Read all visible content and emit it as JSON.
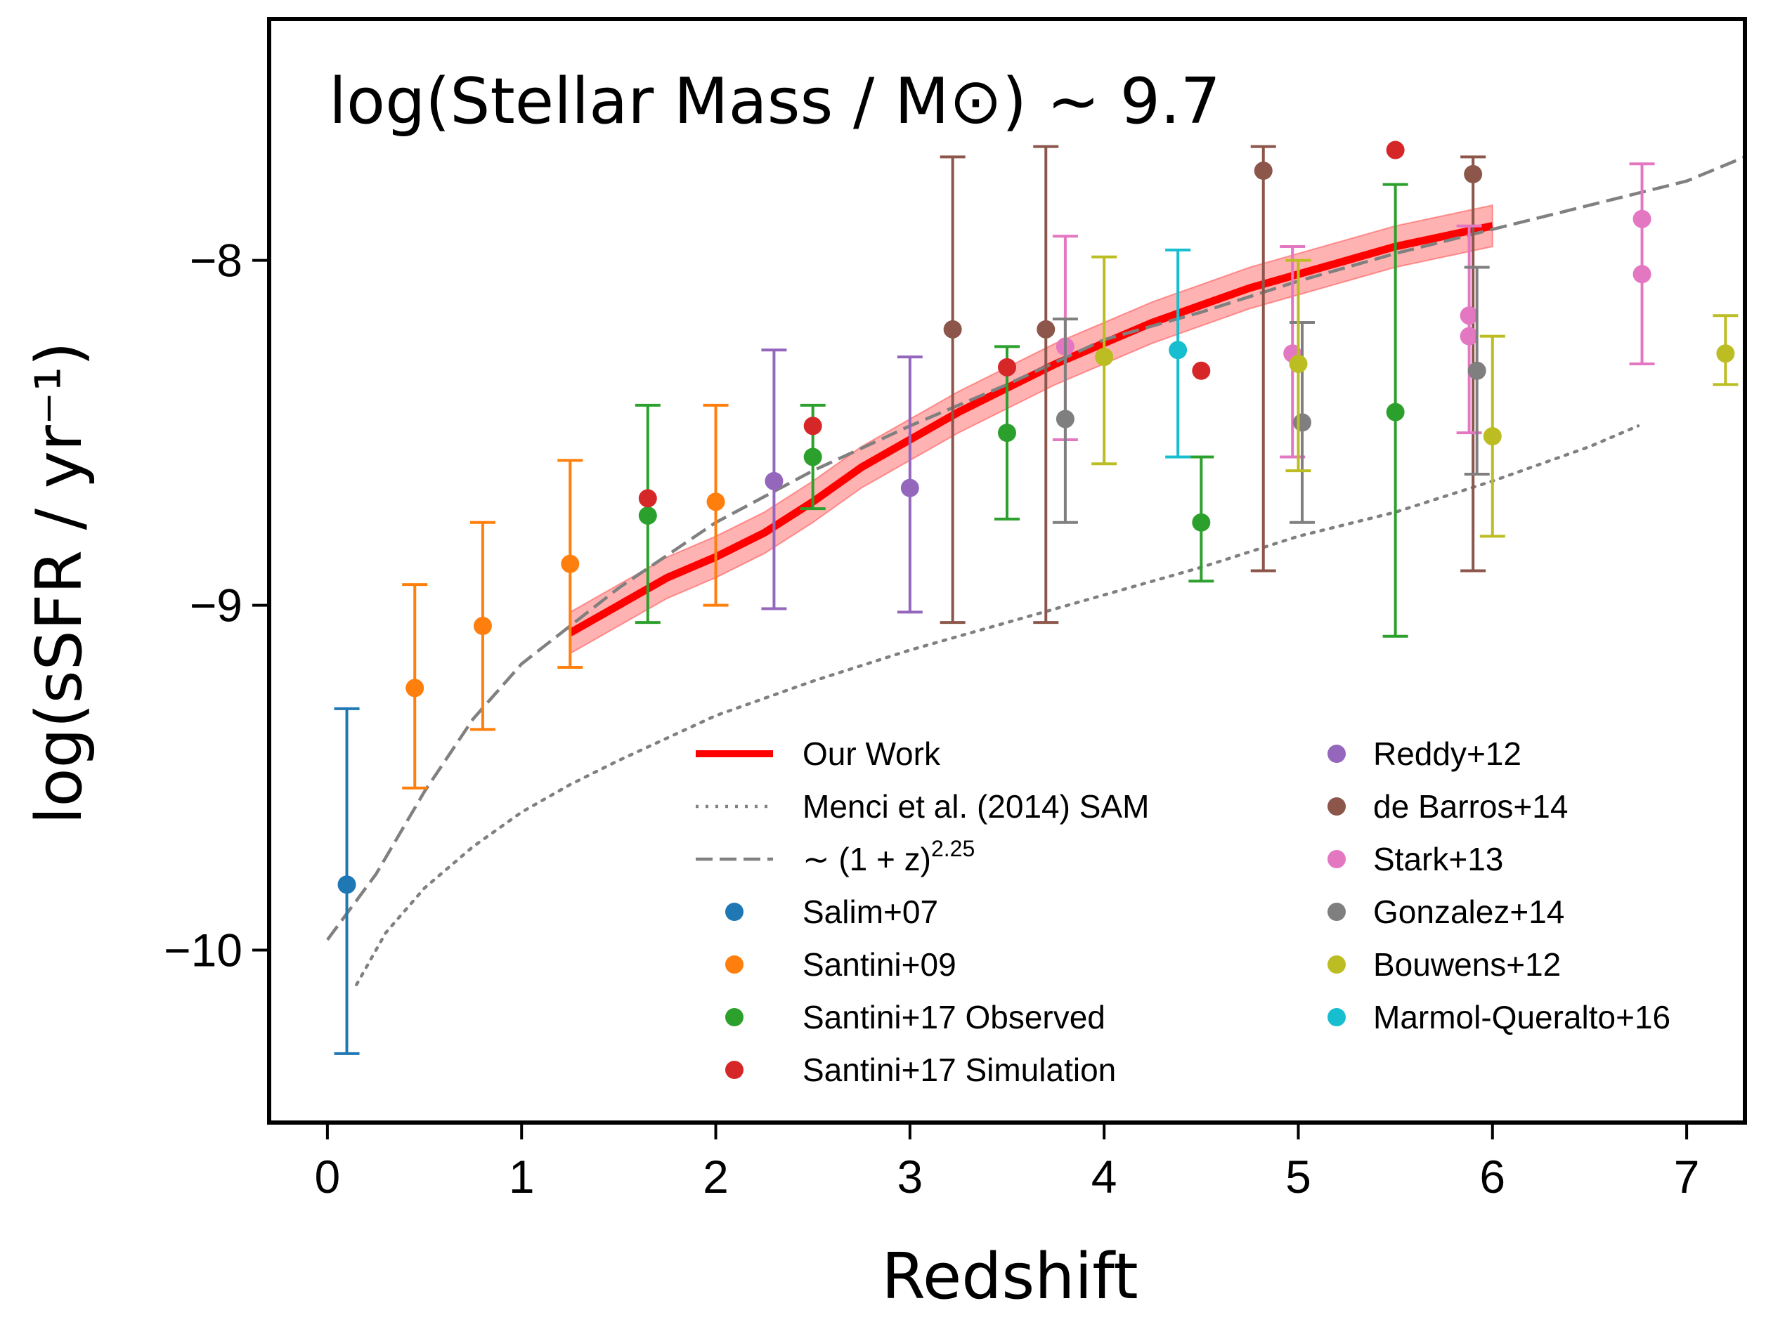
{
  "chart_data": {
    "type": "scatter",
    "title": "log(Stellar Mass / M⊙) ~ 9.7",
    "xlabel": "Redshift",
    "ylabel": "log(sSFR / yr⁻¹)",
    "xlim": [
      -0.3,
      7.3
    ],
    "ylim": [
      -10.5,
      -7.3
    ],
    "x_ticks": [
      0,
      1,
      2,
      3,
      4,
      5,
      6,
      7
    ],
    "x_tick_labels": [
      "0",
      "1",
      "2",
      "3",
      "4",
      "5",
      "6",
      "7"
    ],
    "y_ticks": [
      -8,
      -9,
      -10
    ],
    "y_tick_labels": [
      "−8",
      "−9",
      "−10"
    ],
    "grid": false,
    "legend_position": "lower-right",
    "lines": [
      {
        "name": "Our Work",
        "color": "#ff0000",
        "style": "solid",
        "x": [
          1.25,
          1.5,
          1.75,
          2.0,
          2.25,
          2.5,
          2.75,
          3.0,
          3.25,
          3.5,
          3.75,
          4.0,
          4.25,
          4.5,
          4.75,
          5.0,
          5.25,
          5.5,
          5.75,
          6.0
        ],
        "y": [
          -9.08,
          -9.0,
          -8.92,
          -8.86,
          -8.79,
          -8.7,
          -8.6,
          -8.52,
          -8.44,
          -8.37,
          -8.3,
          -8.24,
          -8.18,
          -8.13,
          -8.08,
          -8.04,
          -8.0,
          -7.96,
          -7.93,
          -7.9
        ],
        "band": 0.06
      },
      {
        "name": "Menci et al. (2014) SAM",
        "color": "#808080",
        "style": "dotted",
        "x": [
          0.15,
          0.3,
          0.5,
          0.75,
          1.0,
          1.25,
          1.5,
          2.0,
          2.5,
          3.0,
          3.5,
          4.0,
          4.5,
          5.0,
          5.5,
          6.0,
          6.5,
          6.75
        ],
        "y": [
          -10.1,
          -9.95,
          -9.82,
          -9.7,
          -9.6,
          -9.52,
          -9.45,
          -9.32,
          -9.22,
          -9.13,
          -9.05,
          -8.97,
          -8.89,
          -8.8,
          -8.73,
          -8.64,
          -8.54,
          -8.48
        ]
      },
      {
        "name": "∼ (1 + z)^2.25",
        "color": "#808080",
        "style": "dashed",
        "x": [
          0.0,
          0.25,
          0.5,
          0.75,
          1.0,
          1.25,
          1.5,
          2.0,
          2.5,
          3.0,
          3.5,
          4.0,
          4.5,
          5.0,
          5.5,
          6.0,
          6.5,
          7.0,
          7.3
        ],
        "y": [
          -9.97,
          -9.78,
          -9.54,
          -9.33,
          -9.17,
          -9.06,
          -8.95,
          -8.76,
          -8.61,
          -8.48,
          -8.36,
          -8.23,
          -8.15,
          -8.06,
          -7.98,
          -7.91,
          -7.84,
          -7.77,
          -7.7
        ]
      }
    ],
    "series": [
      {
        "name": "Salim+07",
        "color": "#1f77b4",
        "points": [
          {
            "x": 0.1,
            "y": -9.81,
            "ylo": -10.3,
            "yhi": -9.3
          }
        ]
      },
      {
        "name": "Santini+09",
        "color": "#ff7f0e",
        "points": [
          {
            "x": 0.45,
            "y": -9.24,
            "ylo": -9.53,
            "yhi": -8.94
          },
          {
            "x": 0.8,
            "y": -9.06,
            "ylo": -9.36,
            "yhi": -8.76
          },
          {
            "x": 1.25,
            "y": -8.88,
            "ylo": -9.18,
            "yhi": -8.58
          },
          {
            "x": 2.0,
            "y": -8.7,
            "ylo": -9.0,
            "yhi": -8.42
          }
        ]
      },
      {
        "name": "Santini+17 Observed",
        "color": "#2ca02c",
        "points": [
          {
            "x": 1.65,
            "y": -8.74,
            "ylo": -9.05,
            "yhi": -8.42
          },
          {
            "x": 2.5,
            "y": -8.57,
            "ylo": -8.72,
            "yhi": -8.42
          },
          {
            "x": 3.5,
            "y": -8.5,
            "ylo": -8.75,
            "yhi": -8.25
          },
          {
            "x": 4.5,
            "y": -8.76,
            "ylo": -8.93,
            "yhi": -8.57
          },
          {
            "x": 5.5,
            "y": -8.44,
            "ylo": -9.09,
            "yhi": -7.78
          }
        ]
      },
      {
        "name": "Santini+17 Simulation",
        "color": "#d62728",
        "points": [
          {
            "x": 1.65,
            "y": -8.69
          },
          {
            "x": 2.5,
            "y": -8.48
          },
          {
            "x": 3.5,
            "y": -8.31
          },
          {
            "x": 4.5,
            "y": -8.32
          },
          {
            "x": 5.5,
            "y": -7.68
          }
        ]
      },
      {
        "name": "Reddy+12",
        "color": "#9467bd",
        "points": [
          {
            "x": 2.3,
            "y": -8.64,
            "ylo": -9.01,
            "yhi": -8.26
          },
          {
            "x": 3.0,
            "y": -8.66,
            "ylo": -9.02,
            "yhi": -8.28
          }
        ]
      },
      {
        "name": "de Barros+14",
        "color": "#8c564b",
        "points": [
          {
            "x": 3.22,
            "y": -8.2,
            "ylo": -9.05,
            "yhi": -7.7
          },
          {
            "x": 3.7,
            "y": -8.2,
            "ylo": -9.05,
            "yhi": -7.67
          },
          {
            "x": 4.82,
            "y": -7.74,
            "ylo": -8.9,
            "yhi": -7.67
          },
          {
            "x": 5.9,
            "y": -7.75,
            "ylo": -8.9,
            "yhi": -7.7
          }
        ]
      },
      {
        "name": "Stark+13",
        "color": "#e377c2",
        "points": [
          {
            "x": 3.8,
            "y": -8.25,
            "ylo": -8.52,
            "yhi": -7.93
          },
          {
            "x": 4.97,
            "y": -8.27,
            "ylo": -8.57,
            "yhi": -7.96
          },
          {
            "x": 5.88,
            "y": -8.16,
            "ylo": -8.5,
            "yhi": -7.9
          },
          {
            "x": 5.88,
            "y": -8.22
          },
          {
            "x": 6.77,
            "y": -7.88,
            "ylo": -8.3,
            "yhi": -7.72
          },
          {
            "x": 6.77,
            "y": -8.04
          }
        ]
      },
      {
        "name": "Gonzalez+14",
        "color": "#7f7f7f",
        "points": [
          {
            "x": 3.8,
            "y": -8.46,
            "ylo": -8.76,
            "yhi": -8.17
          },
          {
            "x": 5.02,
            "y": -8.47,
            "ylo": -8.76,
            "yhi": -8.18
          },
          {
            "x": 5.92,
            "y": -8.32,
            "ylo": -8.62,
            "yhi": -8.02
          }
        ]
      },
      {
        "name": "Bouwens+12",
        "color": "#bcbd22",
        "points": [
          {
            "x": 4.0,
            "y": -8.28,
            "ylo": -8.59,
            "yhi": -7.99
          },
          {
            "x": 5.0,
            "y": -8.3,
            "ylo": -8.61,
            "yhi": -8.0
          },
          {
            "x": 6.0,
            "y": -8.51,
            "ylo": -8.8,
            "yhi": -8.22
          },
          {
            "x": 7.2,
            "y": -8.27,
            "ylo": -8.36,
            "yhi": -8.16
          }
        ]
      },
      {
        "name": "Marmol-Queralto+16",
        "color": "#17becf",
        "points": [
          {
            "x": 4.38,
            "y": -8.26,
            "ylo": -8.57,
            "yhi": -7.97
          }
        ]
      }
    ],
    "legend": {
      "left": [
        "Our Work",
        "Menci et al. (2014) SAM",
        "∼ (1 + z)",
        "Salim+07",
        "Santini+09",
        "Santini+17 Observed",
        "Santini+17 Simulation"
      ],
      "right": [
        "Reddy+12",
        "de Barros+14",
        "Stark+13",
        "Gonzalez+14",
        "Bouwens+12",
        "Marmol-Queralto+16"
      ],
      "exponent": "2.25"
    }
  }
}
